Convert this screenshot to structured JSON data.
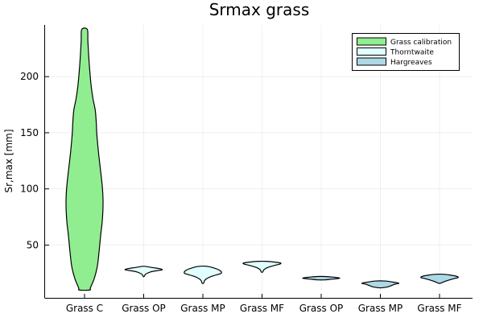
{
  "chart_data": {
    "type": "violin",
    "title": "Srmax grass",
    "ylabel": "Sr,max [mm]",
    "xlabel": "",
    "ylim": [
      3,
      246
    ],
    "yticks": [
      50,
      100,
      150,
      200
    ],
    "grid": true,
    "legend_position": "top-right",
    "categories": [
      "Grass C",
      "Grass OP",
      "Grass MP",
      "Grass MF",
      "Grass OP",
      "Grass MP",
      "Grass MF"
    ],
    "legend": [
      {
        "name": "Grass calibration",
        "color": "#90EE90"
      },
      {
        "name": "Thorntwaite",
        "color": "#E0FFFF"
      },
      {
        "name": "Hargreaves",
        "color": "#ADD8E6"
      }
    ],
    "violins": [
      {
        "category": "Grass C",
        "series": "Grass calibration",
        "color": "#90EE90",
        "profile": [
          [
            10,
            0.28
          ],
          [
            12,
            0.32
          ],
          [
            20,
            0.52
          ],
          [
            30,
            0.68
          ],
          [
            40,
            0.76
          ],
          [
            50,
            0.82
          ],
          [
            60,
            0.88
          ],
          [
            70,
            0.95
          ],
          [
            80,
            0.99
          ],
          [
            90,
            1.0
          ],
          [
            100,
            0.97
          ],
          [
            110,
            0.91
          ],
          [
            120,
            0.84
          ],
          [
            130,
            0.77
          ],
          [
            140,
            0.71
          ],
          [
            150,
            0.66
          ],
          [
            160,
            0.63
          ],
          [
            170,
            0.58
          ],
          [
            180,
            0.46
          ],
          [
            190,
            0.37
          ],
          [
            200,
            0.31
          ],
          [
            210,
            0.26
          ],
          [
            220,
            0.22
          ],
          [
            232,
            0.18
          ],
          [
            242,
            0.15
          ]
        ]
      },
      {
        "category": "Grass OP",
        "series": "Thorntwaite",
        "color": "#E0FFFF",
        "profile": [
          [
            22,
            0.02
          ],
          [
            24,
            0.1
          ],
          [
            26,
            0.35
          ],
          [
            27,
            0.65
          ],
          [
            28,
            1.0
          ],
          [
            29,
            0.85
          ],
          [
            30,
            0.45
          ],
          [
            31,
            0.1
          ]
        ]
      },
      {
        "category": "Grass MP",
        "series": "Thorntwaite",
        "color": "#E0FFFF",
        "profile": [
          [
            16,
            0.04
          ],
          [
            18,
            0.08
          ],
          [
            20,
            0.2
          ],
          [
            22,
            0.45
          ],
          [
            24,
            0.85
          ],
          [
            25,
            1.0
          ],
          [
            27,
            0.95
          ],
          [
            29,
            0.7
          ],
          [
            31,
            0.25
          ]
        ]
      },
      {
        "category": "Grass MF",
        "series": "Thorntwaite",
        "color": "#E0FFFF",
        "profile": [
          [
            26,
            0.04
          ],
          [
            28,
            0.1
          ],
          [
            30,
            0.3
          ],
          [
            32,
            0.7
          ],
          [
            33,
            0.95
          ],
          [
            34,
            1.0
          ],
          [
            35,
            0.6
          ],
          [
            35.5,
            0.2
          ]
        ]
      },
      {
        "category": "Grass OP",
        "series": "Hargreaves",
        "color": "#ADD8E6",
        "profile": [
          [
            19,
            0.15
          ],
          [
            19.5,
            0.5
          ],
          [
            20.5,
            1.0
          ],
          [
            21.5,
            0.6
          ],
          [
            22,
            0.2
          ]
        ]
      },
      {
        "category": "Grass MP",
        "series": "Hargreaves",
        "color": "#ADD8E6",
        "profile": [
          [
            12,
            0.1
          ],
          [
            13,
            0.45
          ],
          [
            15,
            0.75
          ],
          [
            16,
            1.0
          ],
          [
            17,
            0.7
          ],
          [
            18,
            0.25
          ]
        ]
      },
      {
        "category": "Grass MF",
        "series": "Hargreaves",
        "color": "#ADD8E6",
        "profile": [
          [
            16,
            0.05
          ],
          [
            18,
            0.35
          ],
          [
            20,
            0.75
          ],
          [
            21,
            1.0
          ],
          [
            22,
            0.95
          ],
          [
            23,
            0.7
          ],
          [
            24,
            0.2
          ]
        ]
      }
    ]
  }
}
